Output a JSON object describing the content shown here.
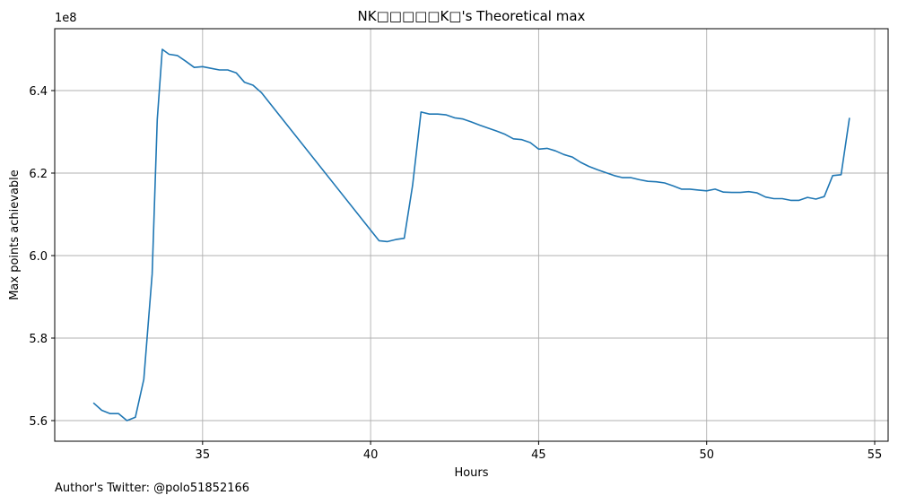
{
  "footer_text": "Author's Twitter: @polo51852166",
  "colors": {
    "line": "#1f77b4",
    "grid": "#b0b0b0",
    "axes": "#000000"
  },
  "chart_data": {
    "type": "line",
    "title": "NK□□□□□K□'s Theoretical max",
    "xlabel": "Hours",
    "ylabel": "Max points achievable",
    "y_offset_label": "1e8",
    "xlim": [
      30.6,
      55.4
    ],
    "ylim": [
      555000000,
      655000000
    ],
    "xticks": [
      35,
      40,
      45,
      50,
      55
    ],
    "xtick_labels": [
      "35",
      "40",
      "45",
      "50",
      "55"
    ],
    "yticks": [
      560000000,
      580000000,
      600000000,
      620000000,
      640000000
    ],
    "ytick_labels": [
      "5.6",
      "5.8",
      "6.0",
      "6.2",
      "6.4"
    ],
    "grid": true,
    "series": [
      {
        "x": [
          31.75,
          32.0,
          32.25,
          32.5,
          32.75,
          33.0,
          33.25,
          33.5,
          33.65,
          33.8,
          34.0,
          34.25,
          34.5,
          34.75,
          35.0,
          35.25,
          35.5,
          35.75,
          36.0,
          36.25,
          36.5,
          36.75,
          40.25,
          40.5,
          40.75,
          41.0,
          41.25,
          41.5,
          41.75,
          42.0,
          42.25,
          42.5,
          42.75,
          43.0,
          43.25,
          43.5,
          43.75,
          44.0,
          44.25,
          44.5,
          44.75,
          45.0,
          45.25,
          45.5,
          45.75,
          46.0,
          46.25,
          46.5,
          46.75,
          47.0,
          47.25,
          47.5,
          47.75,
          48.0,
          48.25,
          48.5,
          48.75,
          49.0,
          49.25,
          49.5,
          49.75,
          50.0,
          50.25,
          50.5,
          50.75,
          51.0,
          51.25,
          51.5,
          51.75,
          52.0,
          52.25,
          52.5,
          52.75,
          53.0,
          53.25,
          53.5,
          53.75,
          54.0,
          54.25
        ],
        "y": [
          564300000,
          562500000,
          561700000,
          561700000,
          560000000,
          560800000,
          570000000,
          595500000,
          633000000,
          650000000,
          648800000,
          648500000,
          647100000,
          645600000,
          645800000,
          645400000,
          645000000,
          645000000,
          644300000,
          642000000,
          641300000,
          639500000,
          603600000,
          603400000,
          603900000,
          604200000,
          617000000,
          634800000,
          634300000,
          634300000,
          634100000,
          633400000,
          633100000,
          632400000,
          631600000,
          630900000,
          630200000,
          629400000,
          628300000,
          628100000,
          627400000,
          625800000,
          626000000,
          625400000,
          624500000,
          623900000,
          622600000,
          621600000,
          620800000,
          620100000,
          619400000,
          618900000,
          618900000,
          618400000,
          618000000,
          617900000,
          617600000,
          616900000,
          616100000,
          616100000,
          615900000,
          615700000,
          616100000,
          615400000,
          615300000,
          615300000,
          615500000,
          615200000,
          614200000,
          613800000,
          613800000,
          613400000,
          613400000,
          614100000,
          613700000,
          614300000,
          619400000,
          619600000,
          633400000
        ]
      }
    ]
  }
}
